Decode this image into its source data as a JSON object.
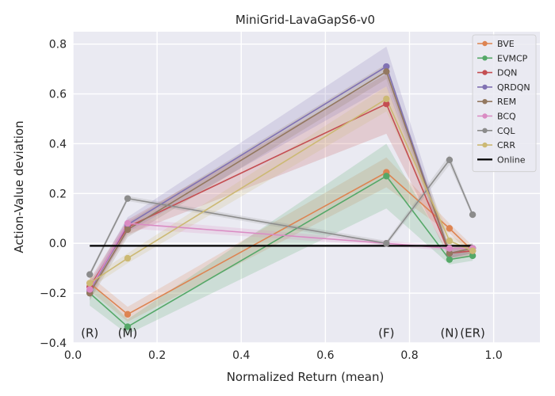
{
  "chart_data": {
    "type": "line",
    "title": "MiniGrid-LavaGapS6-v0",
    "xlabel": "Normalized Return (mean)",
    "ylabel": "Action-Value deviation",
    "xlim": [
      0.0,
      1.11
    ],
    "ylim": [
      -0.4,
      0.85
    ],
    "xticks": [
      0.0,
      0.2,
      0.4,
      0.6,
      0.8,
      1.0
    ],
    "xtick_labels": [
      "0.0",
      "0.2",
      "0.4",
      "0.6",
      "0.8",
      "1.0"
    ],
    "yticks": [
      -0.4,
      -0.2,
      0.0,
      0.2,
      0.4,
      0.6,
      0.8
    ],
    "ytick_labels": [
      "−0.4",
      "−0.2",
      "0.0",
      "0.2",
      "0.4",
      "0.6",
      "0.8"
    ],
    "grid": true,
    "legend_position": "top-right",
    "background": "#eaeaf2",
    "annotations": [
      {
        "text": "(R)",
        "x": 0.04,
        "y": -0.36
      },
      {
        "text": "(M)",
        "x": 0.13,
        "y": -0.36
      },
      {
        "text": "(F)",
        "x": 0.745,
        "y": -0.36
      },
      {
        "text": "(N)",
        "x": 0.895,
        "y": -0.36
      },
      {
        "text": "(ER)",
        "x": 0.95,
        "y": -0.36
      }
    ],
    "series": [
      {
        "name": "BVE",
        "color": "#dd8452",
        "x": [
          0.04,
          0.13,
          0.745,
          0.895,
          0.95
        ],
        "y": [
          -0.16,
          -0.285,
          0.285,
          0.06,
          -0.03
        ],
        "band": [
          0.03,
          0.03,
          0.06,
          0.02,
          0.02
        ]
      },
      {
        "name": "EVMCP",
        "color": "#55a868",
        "x": [
          0.04,
          0.13,
          0.745,
          0.895,
          0.95
        ],
        "y": [
          -0.2,
          -0.335,
          0.27,
          -0.065,
          -0.05
        ],
        "band": [
          0.05,
          0.03,
          0.13,
          0.02,
          0.02
        ]
      },
      {
        "name": "DQN",
        "color": "#c44e52",
        "x": [
          0.04,
          0.13,
          0.745,
          0.895,
          0.95
        ],
        "y": [
          -0.175,
          0.065,
          0.56,
          -0.04,
          -0.03
        ],
        "band": [
          0.03,
          0.03,
          0.12,
          0.02,
          0.02
        ]
      },
      {
        "name": "QRDQN",
        "color": "#8172b3",
        "x": [
          0.04,
          0.13,
          0.745,
          0.895,
          0.95
        ],
        "y": [
          -0.19,
          0.075,
          0.71,
          -0.04,
          -0.02
        ],
        "band": [
          0.03,
          0.03,
          0.08,
          0.02,
          0.02
        ]
      },
      {
        "name": "REM",
        "color": "#937860",
        "x": [
          0.04,
          0.13,
          0.745,
          0.895,
          0.95
        ],
        "y": [
          -0.2,
          0.055,
          0.69,
          -0.04,
          -0.02
        ],
        "band": [
          0.03,
          0.03,
          0.03,
          0.02,
          0.02
        ]
      },
      {
        "name": "BCQ",
        "color": "#da8bc3",
        "x": [
          0.04,
          0.13,
          0.745,
          0.895,
          0.95
        ],
        "y": [
          -0.185,
          0.08,
          0.0,
          -0.02,
          -0.02
        ],
        "band": [
          0.02,
          0.02,
          0.01,
          0.01,
          0.01
        ]
      },
      {
        "name": "CQL",
        "color": "#8c8c8c",
        "x": [
          0.04,
          0.13,
          0.745,
          0.895,
          0.95
        ],
        "y": [
          -0.125,
          0.18,
          0.0,
          0.335,
          0.115
        ],
        "band": [
          0.01,
          0.01,
          0.01,
          0.02,
          0.01
        ]
      },
      {
        "name": "CRR",
        "color": "#ccb974",
        "x": [
          0.04,
          0.13,
          0.745,
          0.895,
          0.95
        ],
        "y": [
          -0.16,
          -0.06,
          0.58,
          0.01,
          -0.03
        ],
        "band": [
          0.02,
          0.02,
          0.05,
          0.02,
          0.02
        ]
      },
      {
        "name": "Online",
        "color": "#000000",
        "online": true,
        "x": [
          0.04,
          0.95
        ],
        "y": [
          -0.01,
          -0.01
        ]
      }
    ]
  }
}
